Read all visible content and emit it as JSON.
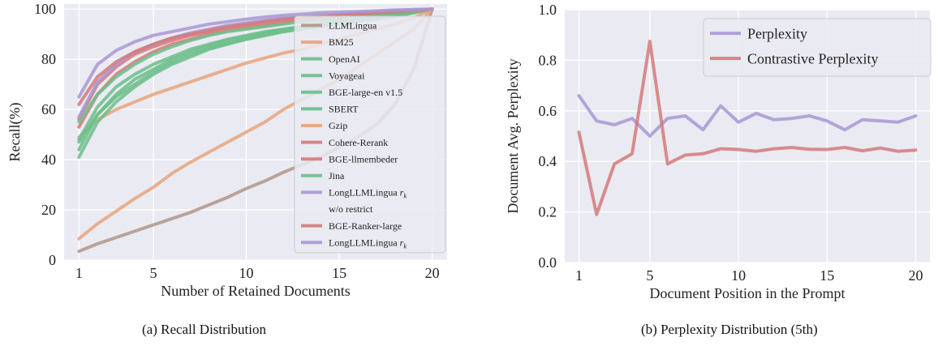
{
  "chart_data": [
    {
      "type": "line",
      "caption": "(a) Recall Distribution",
      "xlabel": "Number of Retained Documents",
      "ylabel": "Recall(%)",
      "xlim": [
        0.2,
        20.8
      ],
      "ylim": [
        0,
        102
      ],
      "xticks": [
        1,
        5,
        10,
        15,
        20
      ],
      "yticks": [
        0,
        20,
        40,
        60,
        80,
        100
      ],
      "grid": true,
      "background": "#eaeaf2",
      "legend_position": "right",
      "x": [
        1,
        2,
        3,
        4,
        5,
        6,
        7,
        8,
        9,
        10,
        11,
        12,
        13,
        14,
        15,
        16,
        17,
        18,
        19,
        20
      ],
      "series": [
        {
          "name": "LLMLingua",
          "color": "#b0968a",
          "values": [
            3.5,
            6.5,
            9,
            11.5,
            14,
            16.5,
            19,
            22,
            25,
            28.5,
            31.5,
            35,
            38,
            41,
            45,
            49,
            54,
            62,
            76,
            100
          ]
        },
        {
          "name": "BM25",
          "color": "#e8a47c",
          "values": [
            49,
            56,
            60,
            63,
            66,
            68.5,
            71,
            73.5,
            76,
            78.5,
            80.5,
            82.5,
            84,
            86,
            88,
            90,
            92,
            94,
            96.5,
            100
          ]
        },
        {
          "name": "OpenAI",
          "color": "#6cbe8a",
          "values": [
            48,
            61,
            69,
            74,
            78,
            81,
            84,
            86,
            88,
            89.5,
            91,
            92,
            93,
            94,
            95,
            96,
            97,
            98,
            99,
            100
          ]
        },
        {
          "name": "Voyageai",
          "color": "#6cbe8a",
          "values": [
            44,
            58,
            66,
            72,
            76,
            80,
            83,
            85.5,
            87.5,
            89,
            90.5,
            92,
            93,
            94,
            95,
            96,
            97,
            98,
            99,
            100
          ]
        },
        {
          "name": "BGE-large-en v1.5",
          "color": "#6cbe8a",
          "values": [
            41,
            55,
            63,
            69,
            74,
            78,
            81,
            84,
            86,
            88,
            89.5,
            91,
            92.5,
            93.5,
            94.5,
            95.5,
            96.5,
            97.5,
            98.5,
            100
          ]
        },
        {
          "name": "SBERT",
          "color": "#6cbe8a",
          "values": [
            47,
            58,
            65,
            70,
            75,
            79,
            82,
            84.5,
            86.5,
            88,
            89.5,
            91,
            92,
            93,
            94,
            95,
            96,
            97,
            98.5,
            100
          ]
        },
        {
          "name": "Gzip",
          "color": "#e8a47c",
          "values": [
            8.5,
            14.5,
            19.5,
            24.5,
            29,
            34.5,
            39,
            43,
            47,
            51,
            55,
            60,
            64,
            68,
            72,
            77,
            82,
            87,
            92,
            100
          ]
        },
        {
          "name": "Cohere-Rerank",
          "color": "#d47a7a",
          "values": [
            56,
            70,
            77,
            82,
            85,
            87.5,
            89.5,
            91,
            92.5,
            93.5,
            94.5,
            95.5,
            96,
            96.5,
            97,
            97.5,
            98,
            98.5,
            99,
            100
          ]
        },
        {
          "name": "BGE-llmembeder",
          "color": "#d47a7a",
          "values": [
            53,
            66,
            74,
            79,
            83,
            86,
            88,
            90,
            91.5,
            92.5,
            93.5,
            94.5,
            95.5,
            96,
            96.5,
            97.5,
            98,
            98.5,
            99,
            100
          ]
        },
        {
          "name": "Jina",
          "color": "#6cbe8a",
          "values": [
            55,
            66,
            73,
            78,
            82,
            85,
            87.5,
            89.5,
            91,
            92,
            93,
            94,
            95,
            95.5,
            96,
            97,
            97.5,
            98.5,
            99,
            100
          ]
        },
        {
          "name": "LongLLMLingua $r_k$ w/o restrict",
          "color": "#a898d4",
          "values": [
            57,
            71,
            78,
            83,
            86,
            88.5,
            90.5,
            92,
            93.5,
            94.5,
            95.5,
            96.5,
            97,
            97.5,
            98,
            98.5,
            99,
            99.5,
            99.7,
            100
          ]
        },
        {
          "name": "BGE-Ranker-large",
          "color": "#d47a7a",
          "values": [
            62,
            73,
            79,
            83,
            86,
            88.5,
            90,
            91.5,
            93,
            94,
            95,
            96,
            96.5,
            97,
            97.5,
            98,
            98.5,
            99,
            99.5,
            100
          ]
        },
        {
          "name": "LongLLMLingua $r_k$",
          "color": "#a898d4",
          "values": [
            65,
            78,
            83.5,
            87,
            89.5,
            91,
            92.5,
            94,
            95,
            96,
            96.8,
            97.5,
            98,
            98.5,
            98.8,
            99,
            99.3,
            99.6,
            99.8,
            100
          ]
        }
      ]
    },
    {
      "type": "line",
      "caption": "(b) Perplexity Distribution (5th)",
      "xlabel": "Document Position in the Prompt",
      "ylabel": "Document Avg. Perplexity",
      "xlim": [
        0.2,
        20.8
      ],
      "ylim": [
        0,
        1
      ],
      "xticks": [
        1,
        5,
        10,
        15,
        20
      ],
      "yticks": [
        0.0,
        0.2,
        0.4,
        0.6,
        0.8,
        1.0
      ],
      "ytick_labels": [
        "0.0",
        "0.2",
        "0.4",
        "0.6",
        "0.8",
        "1.0"
      ],
      "grid": true,
      "background": "#eaeaf2",
      "legend_position": "top-right",
      "x": [
        1,
        2,
        3,
        4,
        5,
        6,
        7,
        8,
        9,
        10,
        11,
        12,
        13,
        14,
        15,
        16,
        17,
        18,
        19,
        20
      ],
      "series": [
        {
          "name": "Perplexity",
          "color": "#a898d4",
          "values": [
            0.66,
            0.56,
            0.545,
            0.57,
            0.5,
            0.57,
            0.58,
            0.525,
            0.62,
            0.555,
            0.59,
            0.565,
            0.57,
            0.58,
            0.56,
            0.525,
            0.565,
            0.56,
            0.555,
            0.58
          ]
        },
        {
          "name": "Contrastive Perplexity",
          "color": "#d47a7a",
          "values": [
            0.515,
            0.19,
            0.39,
            0.43,
            0.875,
            0.39,
            0.425,
            0.43,
            0.45,
            0.447,
            0.44,
            0.45,
            0.455,
            0.448,
            0.447,
            0.455,
            0.442,
            0.453,
            0.44,
            0.445
          ]
        }
      ]
    }
  ]
}
